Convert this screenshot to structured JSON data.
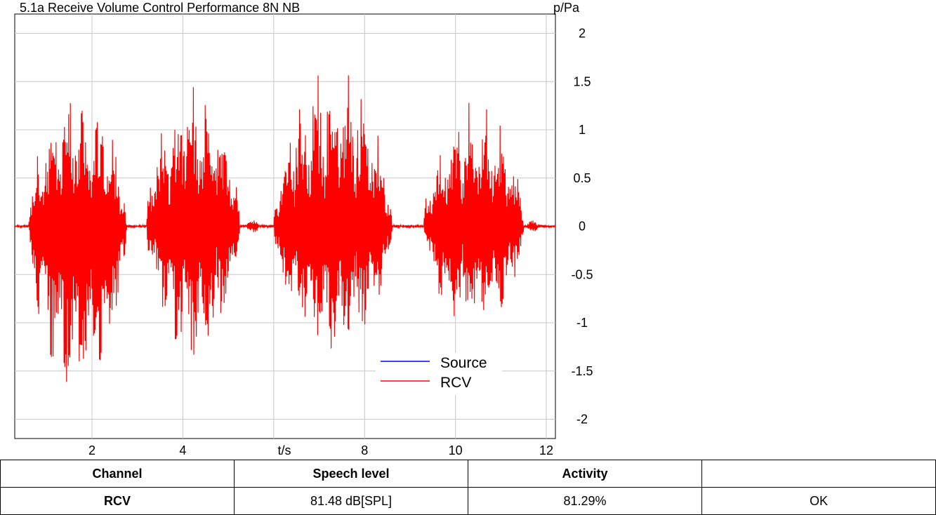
{
  "chart_data": {
    "type": "line",
    "title": "5.1a Receive Volume Control Performance 8N NB",
    "xlabel": "t/s",
    "ylabel": "p/Pa",
    "xlim": [
      0.3,
      12.2
    ],
    "ylim": [
      -2.2,
      2.2
    ],
    "x_ticks": [
      "2",
      "4",
      "8",
      "10",
      "12"
    ],
    "y_ticks": [
      "2",
      "1.5",
      "1",
      "0.5",
      "0",
      "-0.5",
      "-1",
      "-1.5",
      "-2"
    ],
    "grid": true,
    "legend_position": "bottom-center",
    "series": [
      {
        "name": "Source",
        "color": "#0000ff",
        "segments": []
      },
      {
        "name": "RCV",
        "color": "#ff0000",
        "segments": [
          {
            "start": 0.6,
            "end": 2.75,
            "peak": 1.45,
            "trough": -1.9
          },
          {
            "start": 3.2,
            "end": 5.25,
            "peak": 1.45,
            "trough": -1.5
          },
          {
            "start": 5.4,
            "end": 5.65,
            "peak": 0.1,
            "trough": -0.1
          },
          {
            "start": 6.0,
            "end": 8.6,
            "peak": 1.65,
            "trough": -1.45
          },
          {
            "start": 9.3,
            "end": 11.5,
            "peak": 1.3,
            "trough": -1.15
          },
          {
            "start": 11.55,
            "end": 11.8,
            "peak": 0.08,
            "trough": -0.08
          }
        ]
      }
    ]
  },
  "table": {
    "headers": [
      "Channel",
      "Speech level",
      "Activity",
      ""
    ],
    "row": {
      "channel": "RCV",
      "speech_level": "81.48 dB[SPL]",
      "activity": "81.29%",
      "status": "OK"
    }
  }
}
